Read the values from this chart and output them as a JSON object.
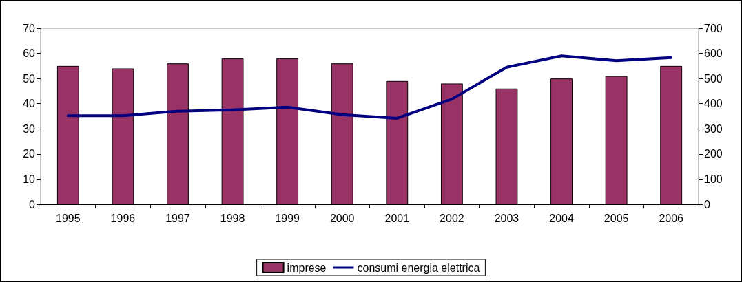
{
  "chart_data": {
    "type": "bar",
    "categories": [
      "1995",
      "1996",
      "1997",
      "1998",
      "1999",
      "2000",
      "2001",
      "2002",
      "2003",
      "2004",
      "2005",
      "2006"
    ],
    "series": [
      {
        "name": "imprese",
        "color": "#993366",
        "values": [
          55,
          54,
          56,
          58,
          58,
          56,
          49,
          48,
          46,
          50,
          51,
          55
        ]
      },
      {
        "name": "consumi energia elettrica",
        "type": "line",
        "axis": "y2",
        "color": "#000080",
        "values": [
          352,
          352,
          370,
          375,
          386,
          356,
          342,
          418,
          545,
          590,
          571,
          583
        ]
      }
    ],
    "ylim": [
      0,
      70
    ],
    "yticks": [
      0,
      10,
      20,
      30,
      40,
      50,
      60,
      70
    ],
    "y2lim": [
      0,
      700
    ],
    "y2ticks": [
      0,
      100,
      200,
      300,
      400,
      500,
      600,
      700
    ],
    "grid": false,
    "legend": "bottom",
    "marker": "none",
    "line_style": "solid"
  }
}
